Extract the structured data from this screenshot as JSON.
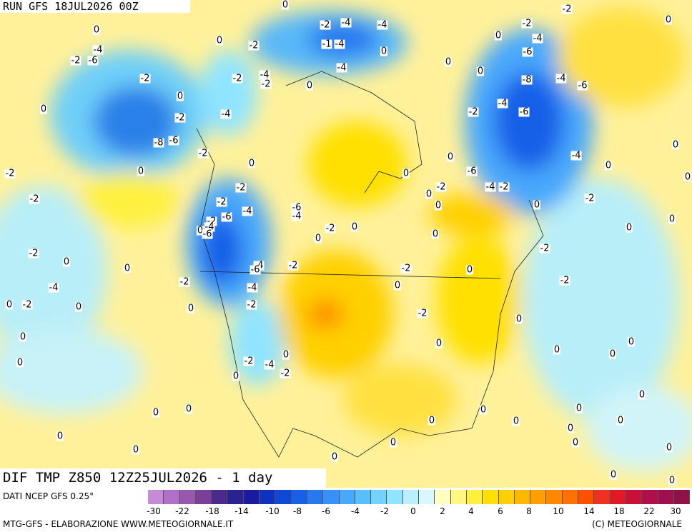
{
  "header": {
    "run": "RUN GFS 18JUL2026 00Z"
  },
  "map": {
    "title": "DIF TMP Z850 12Z25JUL2026 - 1 day",
    "contour_labels": [
      "0",
      "-4",
      "-2",
      "-6",
      "-2",
      "0",
      "0",
      "-2",
      "-8",
      "-6",
      "-2",
      "0",
      "-2",
      "-2",
      "0",
      "-2",
      "-2",
      "-4",
      "-4",
      "-1",
      "-4",
      "0",
      "-4",
      "-4",
      "-2",
      "-2",
      "0",
      "-4",
      "0",
      "0",
      "0",
      "-2",
      "-4",
      "-6",
      "-8",
      "-4",
      "-6",
      "-6",
      "-4",
      "-2",
      "-4",
      "0",
      "-6",
      "-4",
      "-2",
      "-2",
      "0",
      "0",
      "0",
      "0",
      "-2",
      "0",
      "0",
      "0",
      "0",
      "0",
      "-2",
      "-2",
      "0",
      "-2",
      "-2",
      "-4",
      "-6",
      "-2",
      "-6",
      "-4",
      "-2",
      "0",
      "0",
      "0",
      "-4",
      "0",
      "-6",
      "-2",
      "0",
      "0",
      "-2",
      "-4",
      "-2",
      "-6",
      "-4",
      "-2",
      "0",
      "-4",
      "0",
      "-2",
      "0",
      "0",
      "0",
      "-2",
      "0",
      "0",
      "-2",
      "0",
      "0",
      "0",
      "0",
      "0",
      "0",
      "-2",
      "-4",
      "-2",
      "0",
      "0",
      "0",
      "0",
      "0",
      "0",
      "0",
      "0",
      "0",
      "0",
      "0",
      "0",
      "0",
      "0",
      "0",
      "0",
      "0",
      "0",
      "-2",
      "0",
      "0"
    ]
  },
  "legend": {
    "source": "DATI NCEP GFS 0.25°",
    "colors": [
      "#c68bd6",
      "#b070c8",
      "#9858b0",
      "#7c3f98",
      "#4a2a8a",
      "#2a2290",
      "#1a1aa0",
      "#1030c0",
      "#1048d8",
      "#1860e8",
      "#2878f0",
      "#3890f8",
      "#48a8fc",
      "#58c0ff",
      "#70d4ff",
      "#90e4ff",
      "#b8f0ff",
      "#d8f8ff",
      "#ffffc0",
      "#fff880",
      "#fff040",
      "#ffe000",
      "#ffd000",
      "#ffb800",
      "#ffa000",
      "#ff8800",
      "#ff7000",
      "#ff5000",
      "#f03020",
      "#e01828",
      "#c81038",
      "#b0104a",
      "#a01050",
      "#901048"
    ],
    "ticks": [
      "-30",
      "-22",
      "-18",
      "-14",
      "-10",
      "-8",
      "-6",
      "-4",
      "-2",
      "0",
      "2",
      "4",
      "6",
      "8",
      "10",
      "14",
      "18",
      "22",
      "30"
    ]
  },
  "footer": {
    "left": "MTG-GFS - ELABORAZIONE WWW.METEOGIORNALE.IT",
    "right": "(C) METEOGIORNALE"
  }
}
